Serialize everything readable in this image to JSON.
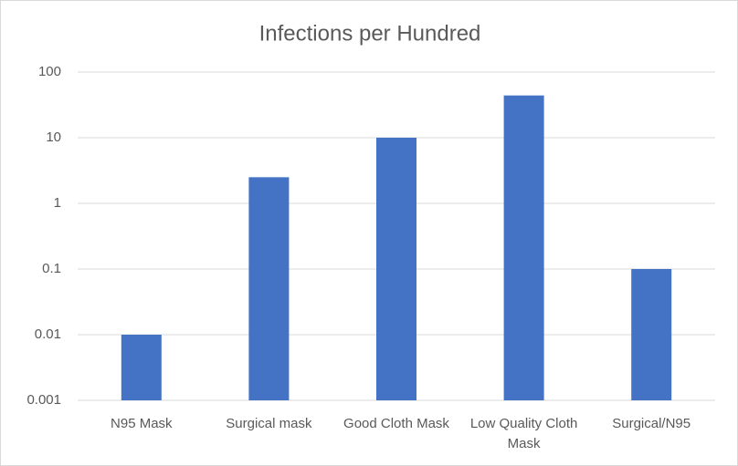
{
  "chart_data": {
    "type": "bar",
    "title": "Infections per Hundred",
    "categories": [
      "N95 Mask",
      "Surgical mask",
      "Good Cloth Mask",
      "Low Quality Cloth Mask",
      "Surgical/N95"
    ],
    "values": [
      0.01,
      2.5,
      10,
      44,
      0.1
    ],
    "color": "#4472c4",
    "log_scale": true,
    "ylim": [
      0.001,
      100
    ],
    "yticks": [
      0.001,
      0.01,
      0.1,
      1,
      10,
      100
    ],
    "grid": true
  }
}
